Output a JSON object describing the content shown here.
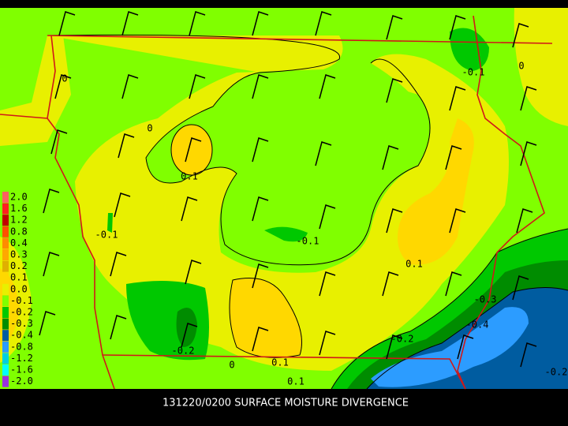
{
  "caption": "131220/0200 SURFACE MOISTURE DIVERGENCE",
  "legend": [
    {
      "label": "2.0",
      "color": "#ff6060"
    },
    {
      "label": "1.6",
      "color": "#ff2020"
    },
    {
      "label": "1.2",
      "color": "#c00000"
    },
    {
      "label": "0.8",
      "color": "#ff5000"
    },
    {
      "label": "0.4",
      "color": "#ff8c00"
    },
    {
      "label": "0.3",
      "color": "#ffa800"
    },
    {
      "label": "0.2",
      "color": "#e0b000"
    },
    {
      "label": "0.1",
      "color": "#ffd800"
    },
    {
      "label": "0.0",
      "color": "#e8f000"
    },
    {
      "label": "-0.1",
      "color": "#80ff00"
    },
    {
      "label": "-0.2",
      "color": "#00c800"
    },
    {
      "label": "-0.3",
      "color": "#008c00"
    },
    {
      "label": "-0.4",
      "color": "#005ca0"
    },
    {
      "label": "-0.8",
      "color": "#2c9cff"
    },
    {
      "label": "-1.2",
      "color": "#00d0e0"
    },
    {
      "label": "-1.6",
      "color": "#00ffff"
    },
    {
      "label": "-2.0",
      "color": "#9a30e0"
    }
  ],
  "contour_labels": [
    "0",
    "-0.1",
    "0",
    "0",
    "0.1",
    "-0.1",
    "-0.1",
    "0.1",
    "-0.3",
    "-0.4",
    "-0.2",
    "-0.2",
    "0",
    "0.1",
    "0.1",
    "-0.2"
  ]
}
